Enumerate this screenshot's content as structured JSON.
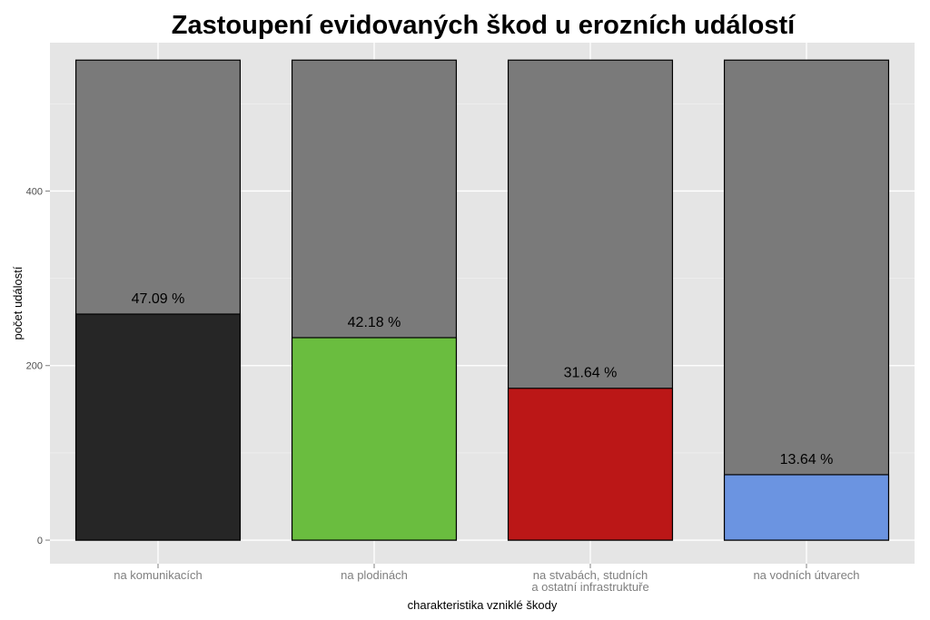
{
  "chart_data": {
    "type": "bar",
    "stacked": true,
    "title": "Zastoupení evidovaných škod u erozních událostí",
    "xlabel": "charakteristika vzniklé škody",
    "ylabel": "počet událostí",
    "categories": [
      [
        "na komunikacích"
      ],
      [
        "na plodinách"
      ],
      [
        "na stvabách, studních",
        "a ostatní infrastruktuře"
      ],
      [
        "na vodních útvarech"
      ]
    ],
    "total": 550,
    "values": [
      259,
      232,
      174,
      75
    ],
    "percent_labels": [
      "47.09 %",
      "42.18 %",
      "31.64 %",
      "13.64 %"
    ],
    "bar_colors": [
      "#262626",
      "#6abd3f",
      "#bb1717",
      "#6b94e1"
    ],
    "total_bar_color": "#7a7a7a",
    "panel_background": "#e5e5e5",
    "yticks": [
      0,
      200,
      400
    ],
    "ylim": [
      -27,
      570
    ],
    "grid": true,
    "legend": "none"
  }
}
